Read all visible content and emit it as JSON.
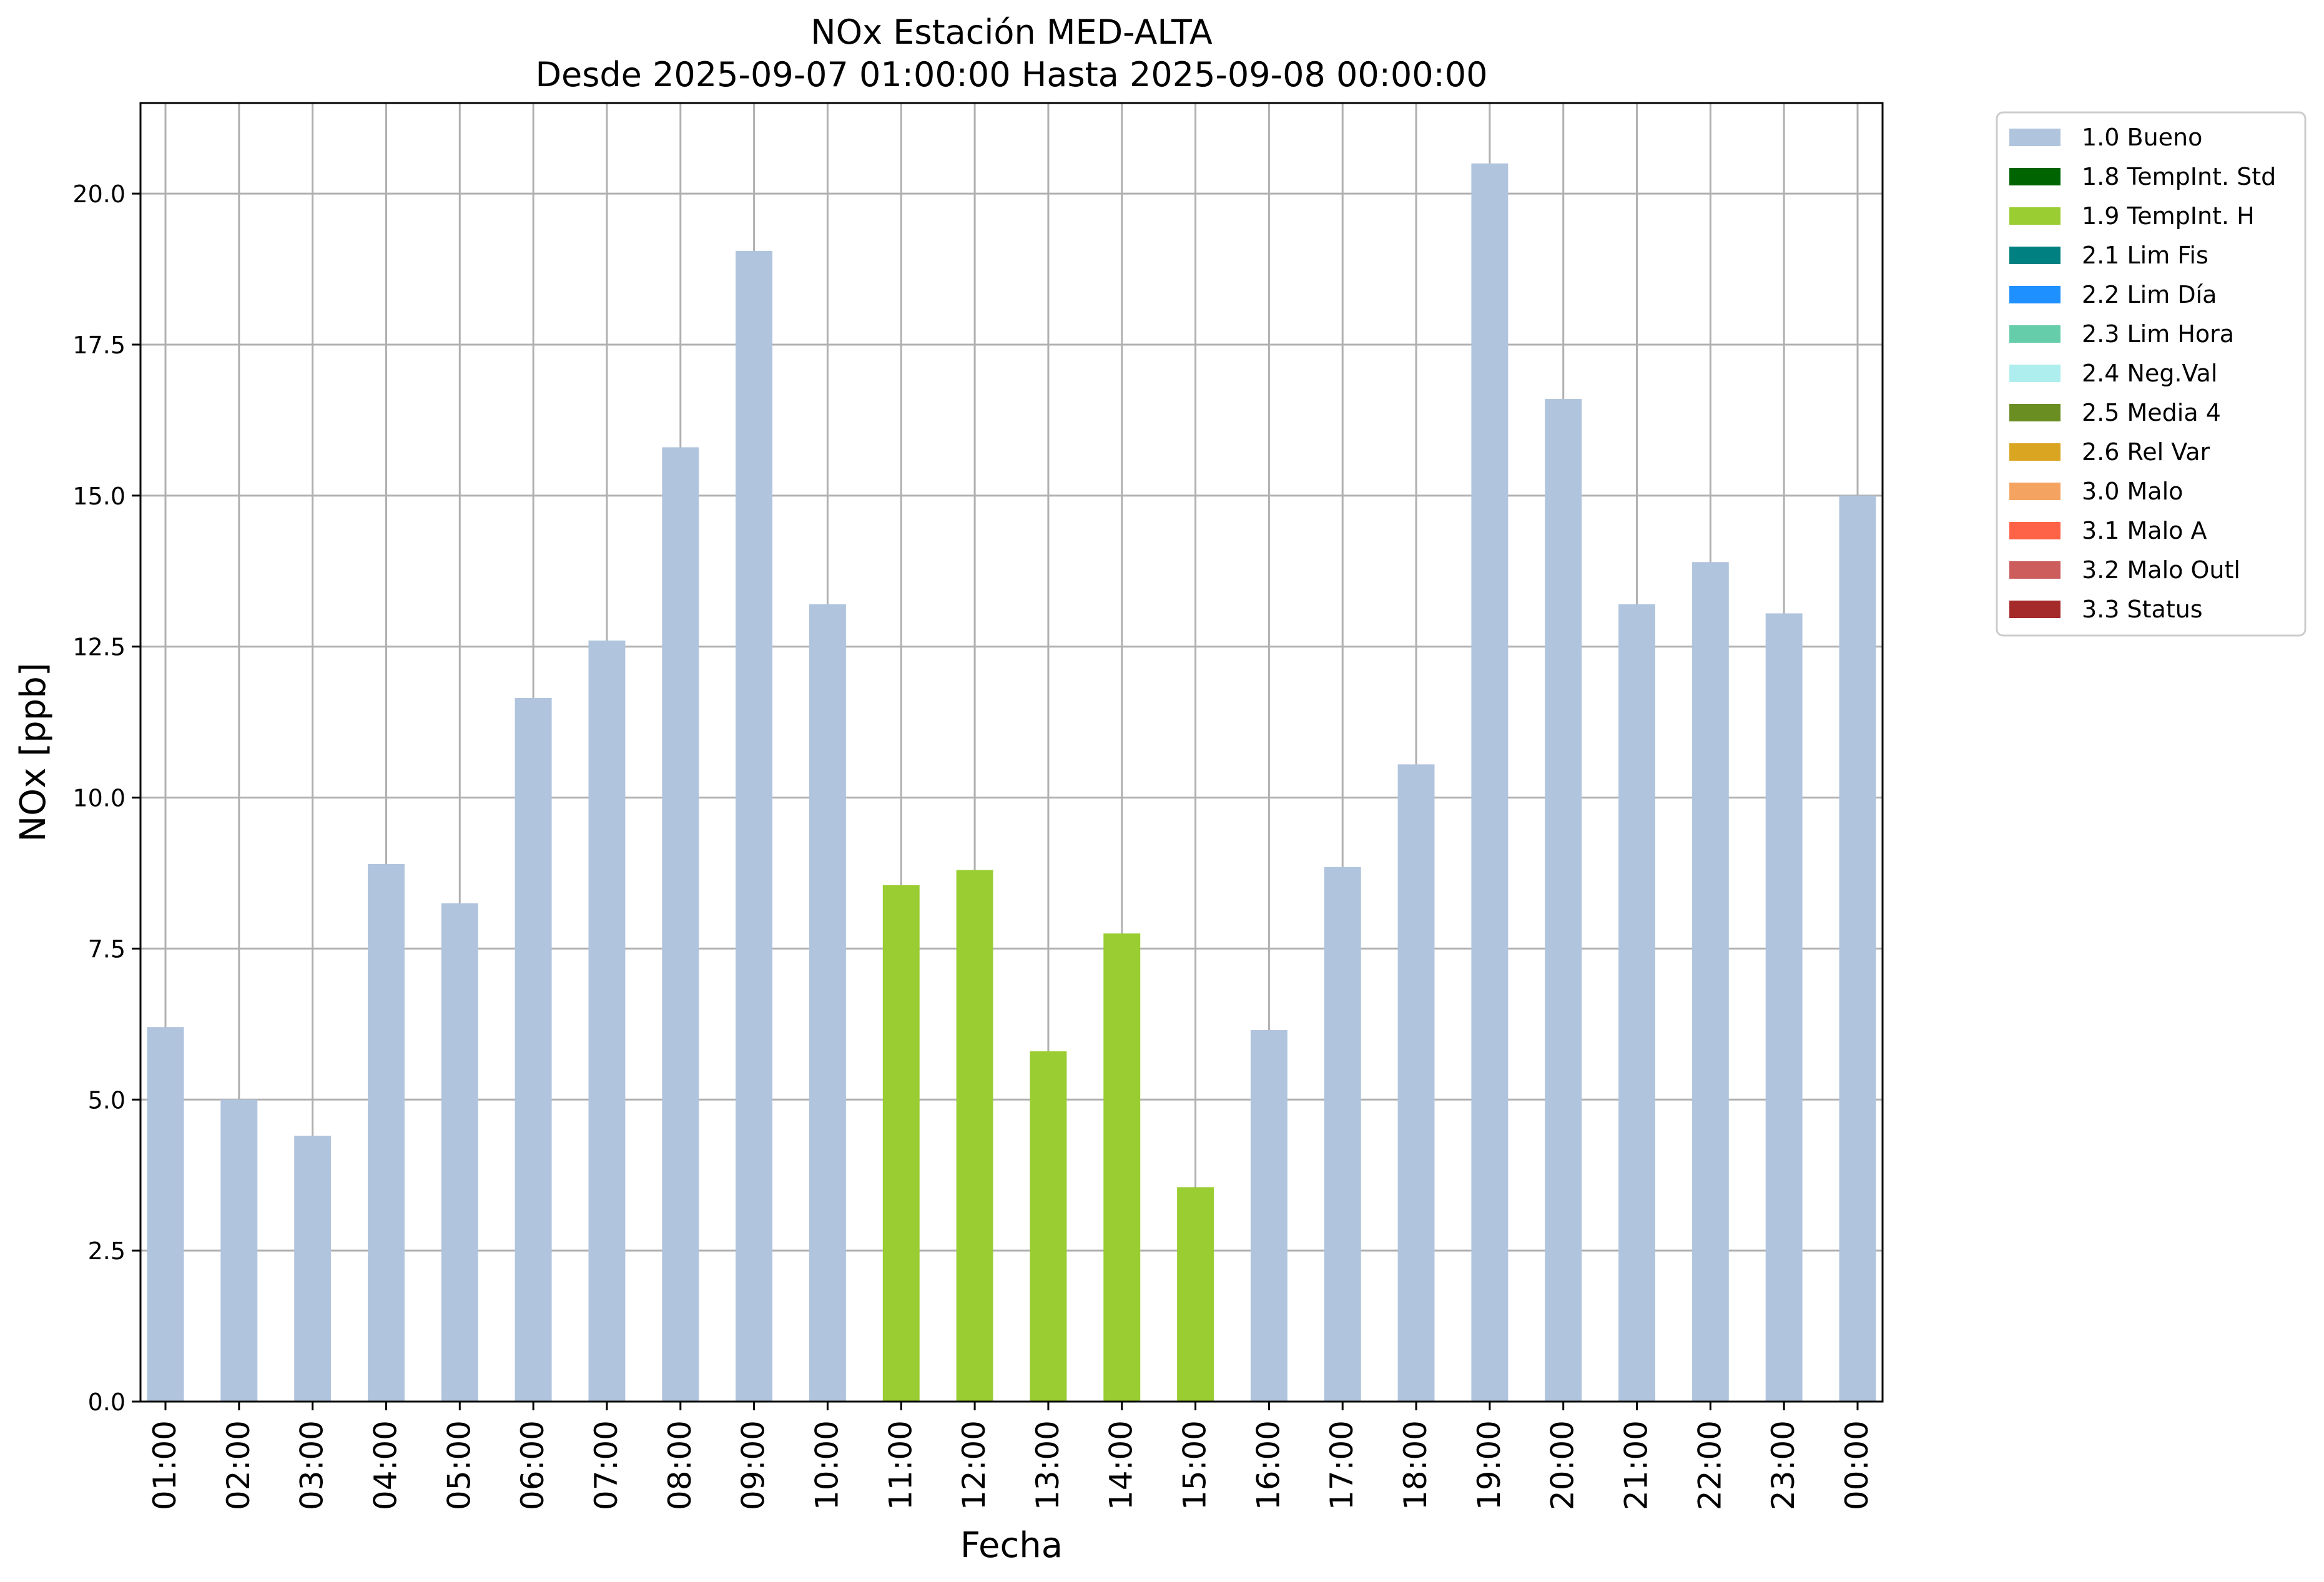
{
  "chart_data": {
    "type": "bar",
    "title": "NOx Estación MED-ALTA",
    "subtitle": "Desde 2025-09-07 01:00:00 Hasta 2025-09-08 00:00:00",
    "xlabel": "Fecha",
    "ylabel": "NOx [ppb]",
    "ylim": [
      0,
      21.5
    ],
    "yticks": [
      "0.0",
      "2.5",
      "5.0",
      "7.5",
      "10.0",
      "12.5",
      "15.0",
      "17.5",
      "20.0"
    ],
    "grid": true,
    "legend_position": "outside-top-right",
    "categories": [
      "01:00",
      "02:00",
      "03:00",
      "04:00",
      "05:00",
      "06:00",
      "07:00",
      "08:00",
      "09:00",
      "10:00",
      "11:00",
      "12:00",
      "13:00",
      "14:00",
      "15:00",
      "16:00",
      "17:00",
      "18:00",
      "19:00",
      "20:00",
      "21:00",
      "22:00",
      "23:00",
      "00:00"
    ],
    "values": [
      6.2,
      5.0,
      4.4,
      8.9,
      8.25,
      11.65,
      12.6,
      15.8,
      19.05,
      13.2,
      8.55,
      8.8,
      5.8,
      7.75,
      3.55,
      6.15,
      8.85,
      10.55,
      20.5,
      16.6,
      13.2,
      13.9,
      13.05,
      15.0
    ],
    "flags": [
      "1.0 Bueno",
      "1.0 Bueno",
      "1.0 Bueno",
      "1.0 Bueno",
      "1.0 Bueno",
      "1.0 Bueno",
      "1.0 Bueno",
      "1.0 Bueno",
      "1.0 Bueno",
      "1.0 Bueno",
      "1.9 TempInt. H",
      "1.9 TempInt. H",
      "1.9 TempInt. H",
      "1.9 TempInt. H",
      "1.9 TempInt. H",
      "1.0 Bueno",
      "1.0 Bueno",
      "1.0 Bueno",
      "1.0 Bueno",
      "1.0 Bueno",
      "1.0 Bueno",
      "1.0 Bueno",
      "1.0 Bueno",
      "1.0 Bueno"
    ],
    "legend": [
      {
        "name": "1.0 Bueno",
        "color": "#b0c4de"
      },
      {
        "name": "1.8 TempInt. Std",
        "color": "#006400"
      },
      {
        "name": "1.9 TempInt. H",
        "color": "#9acd32"
      },
      {
        "name": "2.1 Lim Fis",
        "color": "#008080"
      },
      {
        "name": "2.2 Lim Día",
        "color": "#1e90ff"
      },
      {
        "name": "2.3 Lim Hora",
        "color": "#66cdaa"
      },
      {
        "name": "2.4 Neg.Val",
        "color": "#afeeee"
      },
      {
        "name": "2.5 Media 4",
        "color": "#6b8e23"
      },
      {
        "name": "2.6 Rel Var",
        "color": "#daa520"
      },
      {
        "name": "3.0 Malo",
        "color": "#f4a460"
      },
      {
        "name": "3.1 Malo A",
        "color": "#ff6347"
      },
      {
        "name": "3.2 Malo Outl",
        "color": "#cd5c5c"
      },
      {
        "name": "3.3 Status",
        "color": "#a52a2a"
      }
    ]
  }
}
